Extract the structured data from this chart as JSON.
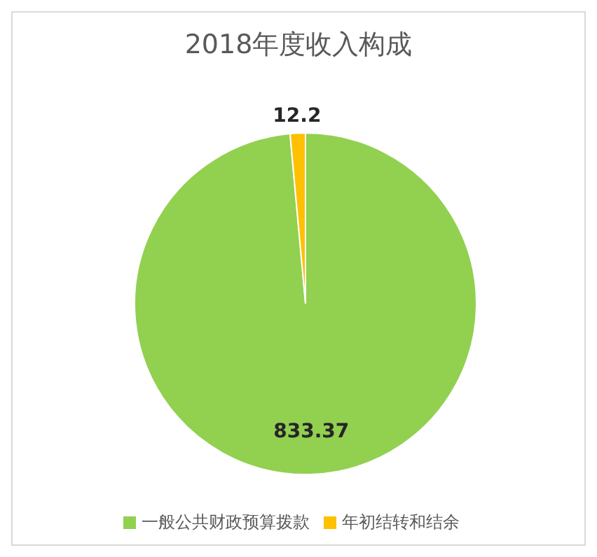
{
  "chart_data": {
    "type": "pie",
    "title": "2018年度收入构成",
    "categories": [
      "一般公共财政预算拨款",
      "年初结转和结余"
    ],
    "values": [
      833.37,
      12.2
    ],
    "colors": [
      "#92d050",
      "#ffc000"
    ],
    "data_labels": true,
    "legend": "bottom"
  }
}
